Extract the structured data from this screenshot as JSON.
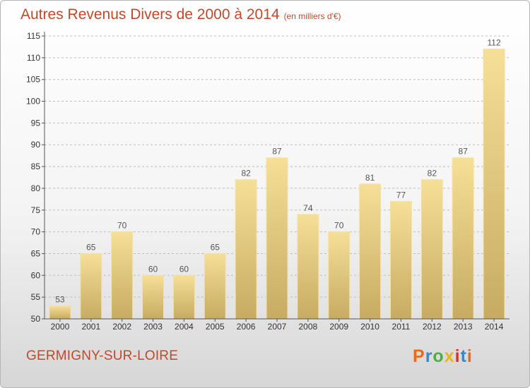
{
  "header": {
    "title": "Autres Revenus Divers de 2000 à 2014",
    "subtitle": "(en milliers d'€)"
  },
  "footer": {
    "city": "GERMIGNY-SUR-LOIRE",
    "logo": [
      "P",
      "r",
      "o",
      "x",
      "i",
      "t",
      "i"
    ]
  },
  "colors": {
    "title": "#c0492b",
    "bar_light": "#f6df97",
    "bar_dark": "#c7ab62",
    "grid": "#bdbdbd"
  },
  "chart_data": {
    "type": "bar",
    "title": "Autres Revenus Divers de 2000 à 2014",
    "subtitle": "(en milliers d'€)",
    "categories": [
      "2000",
      "2001",
      "2002",
      "2003",
      "2004",
      "2005",
      "2006",
      "2007",
      "2008",
      "2009",
      "2010",
      "2011",
      "2012",
      "2013",
      "2014"
    ],
    "values": [
      53,
      65,
      70,
      60,
      60,
      65,
      82,
      87,
      74,
      70,
      81,
      77,
      82,
      87,
      112
    ],
    "ylim": [
      50,
      115
    ],
    "yticks": [
      50,
      55,
      60,
      65,
      70,
      75,
      80,
      85,
      90,
      95,
      100,
      105,
      110,
      115
    ],
    "grid": true,
    "grid_style": "dashed-horizontal"
  }
}
